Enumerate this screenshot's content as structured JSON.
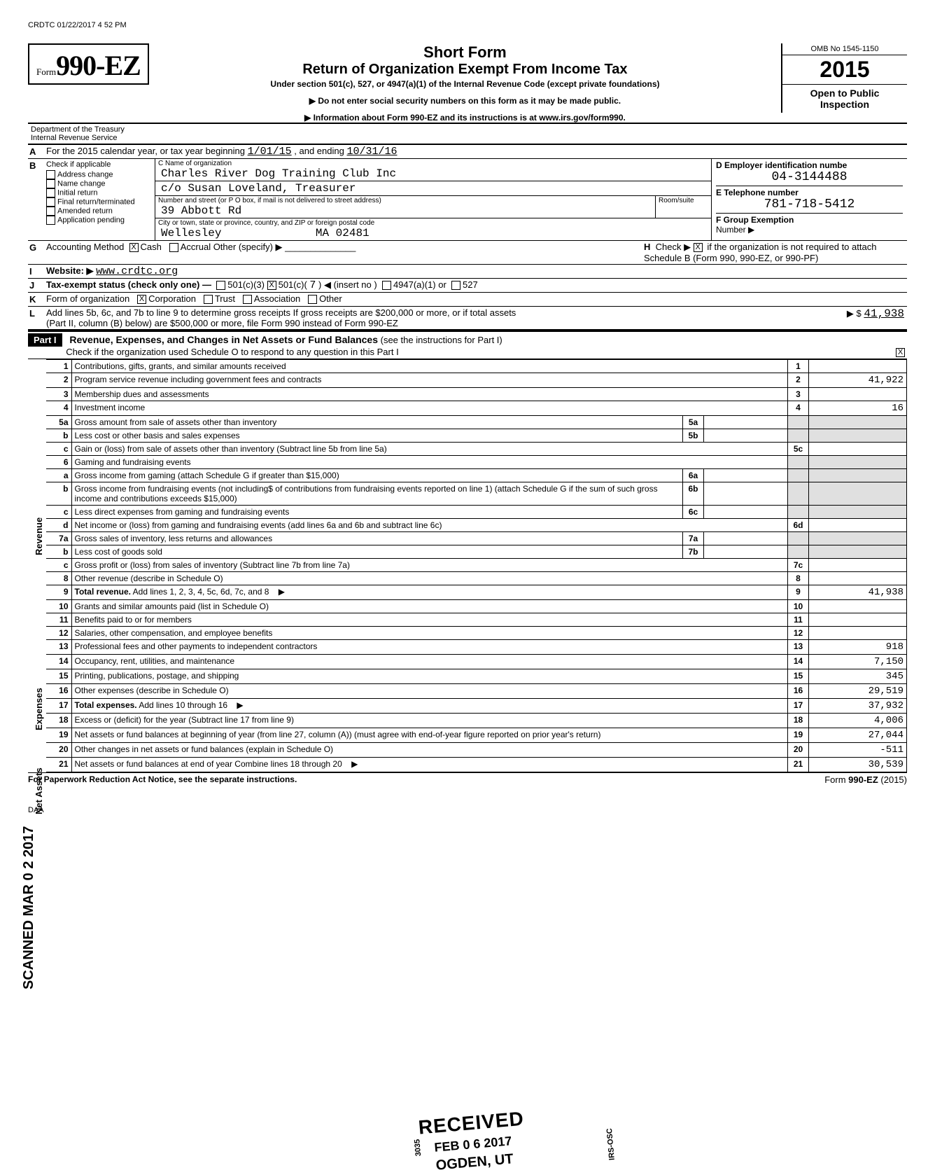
{
  "timestamp": "CRDTC 01/22/2017 4 52 PM",
  "form": {
    "prefix": "Form",
    "number": "990-EZ",
    "title1": "Short Form",
    "title2": "Return of Organization Exempt From Income Tax",
    "subtitle": "Under section 501(c), 527, or 4947(a)(1) of the Internal Revenue Code (except private foundations)",
    "note1": "▶ Do not enter social security numbers on this form as it may be made public.",
    "note2": "▶ Information about Form 990-EZ and its instructions is at www.irs.gov/form990.",
    "omb": "OMB No 1545-1150",
    "year": "2015",
    "open": "Open to Public Inspection",
    "dept1": "Department of the Treasury",
    "dept2": "Internal Revenue Service"
  },
  "lineA": {
    "label": "For the 2015 calendar year, or tax year beginning",
    "begin": "1/01/15",
    "mid": ", and ending",
    "end": "10/31/16"
  },
  "B": {
    "header": "Check if applicable",
    "items": [
      "Address change",
      "Name change",
      "Initial return",
      "Final return/terminated",
      "Amended return",
      "Application pending"
    ]
  },
  "C": {
    "label": "C  Name of organization",
    "name": "Charles River Dog Training Club Inc",
    "care": "c/o Susan Loveland, Treasurer",
    "street_label": "Number and street (or P O box, if mail is not delivered to street address)",
    "room_label": "Room/suite",
    "street": "39 Abbott Rd",
    "city_label": "City or town, state or province, country, and ZIP or foreign postal code",
    "city": "Wellesley",
    "state_zip": "MA 02481"
  },
  "D": {
    "label": "D  Employer identification numbe",
    "value": "04-3144488"
  },
  "E": {
    "label": "E  Telephone number",
    "value": "781-718-5412"
  },
  "F": {
    "label": "F  Group Exemption",
    "sub": "Number  ▶"
  },
  "G": {
    "label": "Accounting Method",
    "cash": "Cash",
    "accrual": "Accrual  Other (specify) ▶"
  },
  "H": {
    "label": "Check ▶",
    "text": "if the organization is not required to attach Schedule B (Form 990, 990-EZ, or 990-PF)"
  },
  "I": {
    "label": "Website: ▶",
    "value": "www.crdtc.org"
  },
  "J": {
    "label": "Tax-exempt status (check only one) —",
    "opts": "501(c)(3)    501(c)(   7  ) ◀ (insert no )      4947(a)(1) or      527"
  },
  "K": {
    "label": "Form of organization",
    "opts": "Corporation       Trust       Association       Other"
  },
  "L": {
    "line1": "Add lines 5b, 6c, and 7b to line 9 to determine gross receipts  If gross receipts are $200,000 or more, or if total assets",
    "line2": "(Part II, column (B) below) are $500,000 or more, file Form 990 instead of Form 990-EZ",
    "arrow": "▶  $",
    "value": "41,938"
  },
  "part1": {
    "label": "Part I",
    "title": "Revenue, Expenses, and Changes in Net Assets or Fund Balances",
    "note": "(see the instructions for Part I)",
    "check": "Check if the organization used Schedule O to respond to any question in this Part I",
    "checked": "X"
  },
  "sections": {
    "revenue": "Revenue",
    "expenses": "Expenses",
    "net": "Net Assets"
  },
  "lines": [
    {
      "n": "1",
      "d": "Contributions, gifts, grants, and similar amounts received",
      "box": "1",
      "amt": ""
    },
    {
      "n": "2",
      "d": "Program service revenue including government fees and contracts",
      "box": "2",
      "amt": "41,922"
    },
    {
      "n": "3",
      "d": "Membership dues and assessments",
      "box": "3",
      "amt": ""
    },
    {
      "n": "4",
      "d": "Investment income",
      "box": "4",
      "amt": "16"
    },
    {
      "n": "5a",
      "d": "Gross amount from sale of assets other than inventory",
      "mid": "5a"
    },
    {
      "n": "b",
      "d": "Less  cost or other basis and sales expenses",
      "mid": "5b"
    },
    {
      "n": "c",
      "d": "Gain or (loss) from sale of assets other than inventory (Subtract line 5b from line 5a)",
      "box": "5c",
      "amt": ""
    },
    {
      "n": "6",
      "d": "Gaming and fundraising events"
    },
    {
      "n": "a",
      "d": "Gross income from gaming (attach Schedule G if greater than $15,000)",
      "mid": "6a"
    },
    {
      "n": "b",
      "d": "Gross income from fundraising events (not including$                        of contributions from fundraising events reported on line 1) (attach Schedule G if the sum of such gross income and contributions exceeds $15,000)",
      "mid": "6b"
    },
    {
      "n": "c",
      "d": "Less  direct expenses from gaming and fundraising events",
      "mid": "6c"
    },
    {
      "n": "d",
      "d": "Net income or (loss) from gaming and fundraising events (add lines 6a and 6b and subtract line 6c)",
      "box": "6d",
      "amt": ""
    },
    {
      "n": "7a",
      "d": "Gross sales of inventory, less returns and allowances",
      "mid": "7a"
    },
    {
      "n": "b",
      "d": "Less  cost of goods sold",
      "mid": "7b"
    },
    {
      "n": "c",
      "d": "Gross profit or (loss) from sales of inventory (Subtract line 7b from line 7a)",
      "box": "7c",
      "amt": ""
    },
    {
      "n": "8",
      "d": "Other revenue (describe in Schedule O)",
      "box": "8",
      "amt": ""
    },
    {
      "n": "9",
      "d": "Total revenue. Add lines 1, 2, 3, 4, 5c, 6d, 7c, and 8",
      "box": "9",
      "amt": "41,938",
      "bold": true,
      "arrow": true
    },
    {
      "n": "10",
      "d": "Grants and similar amounts paid (list in Schedule O)",
      "box": "10",
      "amt": ""
    },
    {
      "n": "11",
      "d": "Benefits paid to or for members",
      "box": "11",
      "amt": ""
    },
    {
      "n": "12",
      "d": "Salaries, other compensation, and employee benefits",
      "box": "12",
      "amt": ""
    },
    {
      "n": "13",
      "d": "Professional fees and other payments to independent contractors",
      "box": "13",
      "amt": "918"
    },
    {
      "n": "14",
      "d": "Occupancy, rent, utilities, and maintenance",
      "box": "14",
      "amt": "7,150"
    },
    {
      "n": "15",
      "d": "Printing, publications, postage, and shipping",
      "box": "15",
      "amt": "345"
    },
    {
      "n": "16",
      "d": "Other expenses (describe in Schedule O)",
      "box": "16",
      "amt": "29,519"
    },
    {
      "n": "17",
      "d": "Total expenses. Add lines 10 through 16",
      "box": "17",
      "amt": "37,932",
      "bold": true,
      "arrow": true
    },
    {
      "n": "18",
      "d": "Excess or (deficit) for the year (Subtract line 17 from line 9)",
      "box": "18",
      "amt": "4,006"
    },
    {
      "n": "19",
      "d": "Net assets or fund balances at beginning of year (from line 27, column (A)) (must agree with end-of-year figure reported on prior year's return)",
      "box": "19",
      "amt": "27,044"
    },
    {
      "n": "20",
      "d": "Other changes in net assets or fund balances (explain in Schedule O)",
      "box": "20",
      "amt": "-511"
    },
    {
      "n": "21",
      "d": "Net assets or fund balances at end of year  Combine lines 18 through 20",
      "box": "21",
      "amt": "30,539",
      "arrow": true
    }
  ],
  "stamp": {
    "received": "RECEIVED",
    "date": "FEB 0 6 2017",
    "location": "OGDEN, UT",
    "code1": "3035",
    "code2": "IRS-OSC"
  },
  "scanned": "SCANNED MAR 0 2 2017",
  "footer": {
    "left": "For Paperwork Reduction Act Notice, see the separate instructions.",
    "right": "Form 990-EZ (2015)",
    "daa": "DAA"
  }
}
